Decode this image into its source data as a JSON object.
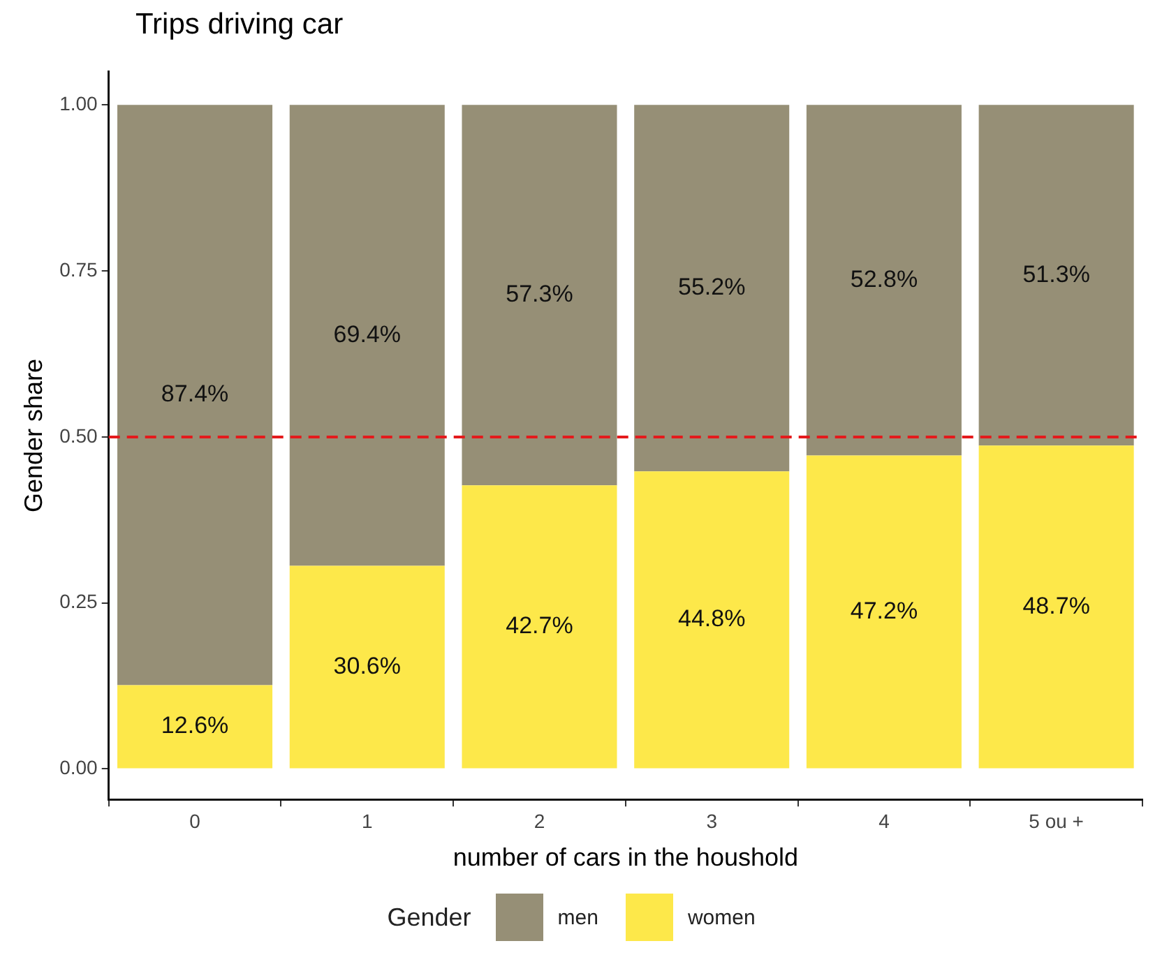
{
  "chart_data": {
    "type": "bar",
    "title": "Trips driving car",
    "xlabel": "number of cars in the houshold",
    "ylabel": "Gender share",
    "legend_title": "Gender",
    "categories": [
      "0",
      "1",
      "2",
      "3",
      "4",
      "5 ou +"
    ],
    "stacked": true,
    "series": [
      {
        "name": "women",
        "color": "#fde84a",
        "values": [
          0.126,
          0.306,
          0.427,
          0.448,
          0.472,
          0.487
        ],
        "value_labels": [
          "12.6%",
          "30.6%",
          "42.7%",
          "44.8%",
          "47.2%",
          "48.7%"
        ]
      },
      {
        "name": "men",
        "color": "#968f76",
        "values": [
          0.874,
          0.694,
          0.573,
          0.552,
          0.528,
          0.513
        ],
        "value_labels": [
          "87.4%",
          "69.4%",
          "57.3%",
          "55.2%",
          "52.8%",
          "51.3%"
        ]
      }
    ],
    "ylim": [
      -0.046,
      1.05
    ],
    "yticks": [
      {
        "value": 0,
        "label": "0.00"
      },
      {
        "value": 0.25,
        "label": "0.25"
      },
      {
        "value": 0.5,
        "label": "0.50"
      },
      {
        "value": 0.75,
        "label": "0.75"
      },
      {
        "value": 1,
        "label": "1.00"
      }
    ],
    "ref_lines": [
      {
        "axis": "y",
        "value": 0.5,
        "color": "#e41a1c",
        "line_style": "dashed"
      }
    ],
    "grid": false,
    "legend": "bottom"
  }
}
